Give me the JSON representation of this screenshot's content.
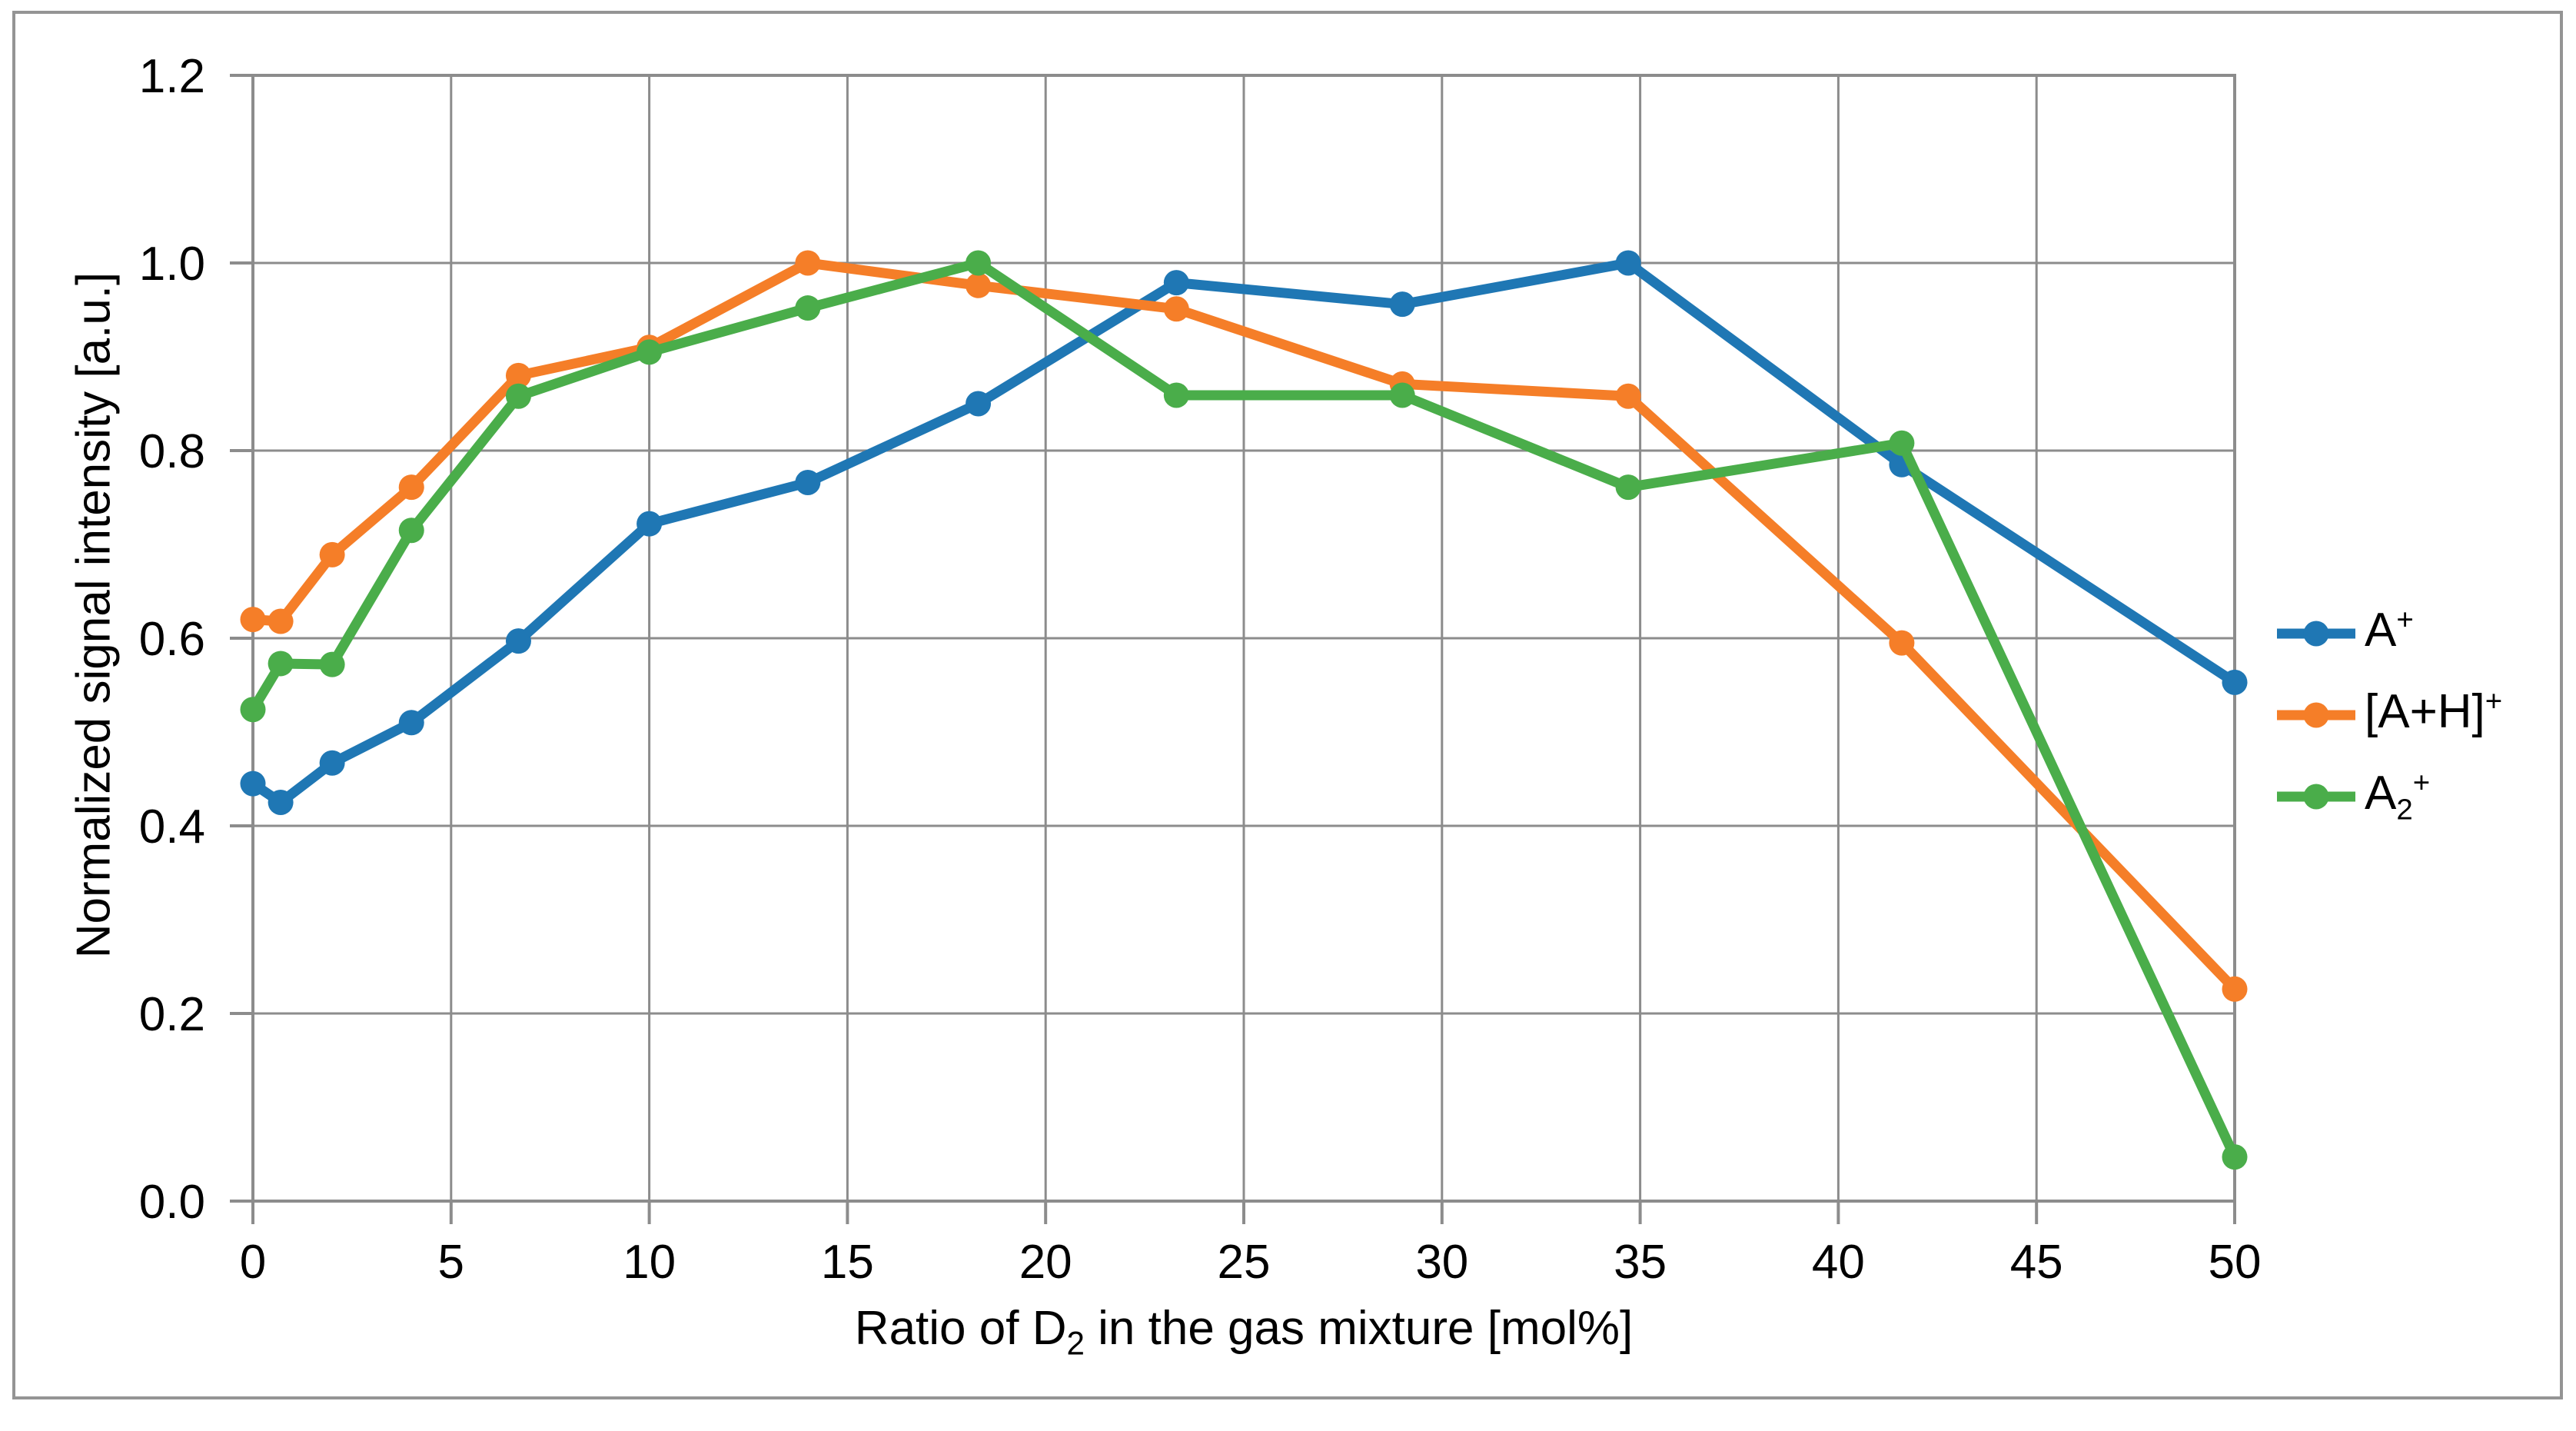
{
  "figure": {
    "background": "#ffffff",
    "border_color": "#949494"
  },
  "chart_data": {
    "type": "line",
    "title": "",
    "x": [
      0,
      0.7,
      2,
      4,
      6.7,
      10,
      14,
      18.3,
      23.3,
      29,
      34.7,
      41.6,
      50
    ],
    "series": [
      {
        "name": "A+",
        "color": "#1f77b4",
        "values": [
          0.445,
          0.425,
          0.467,
          0.51,
          0.597,
          0.722,
          0.766,
          0.85,
          0.979,
          0.956,
          1.0,
          0.785,
          0.553
        ]
      },
      {
        "name": "[A+H]+",
        "color": "#f57e28",
        "values": [
          0.62,
          0.618,
          0.689,
          0.761,
          0.88,
          0.91,
          1.0,
          0.976,
          0.951,
          0.871,
          0.858,
          0.595,
          0.226
        ]
      },
      {
        "name": "A2+",
        "color": "#4aad4a",
        "values": [
          0.524,
          0.573,
          0.572,
          0.715,
          0.858,
          0.905,
          0.952,
          1.0,
          0.859,
          0.859,
          0.761,
          0.808,
          0.047
        ]
      }
    ],
    "xlabel": "Ratio of D2 in the gas mixture [mol%]",
    "ylabel": "Normalized signal intensity [a.u.]",
    "xlim": [
      0,
      50
    ],
    "ylim": [
      0,
      1.2
    ],
    "xticks": [
      0,
      5,
      10,
      15,
      20,
      25,
      30,
      35,
      40,
      45,
      50
    ],
    "yticks": [
      0,
      0.2,
      0.4,
      0.6,
      0.8,
      1.0,
      1.2
    ],
    "ytick_labels": [
      "0.0",
      "0.2",
      "0.4",
      "0.6",
      "0.8",
      "1.0",
      "1.2"
    ],
    "grid": true,
    "grid_color": "#8c8c8c",
    "axis_color": "#8c8c8c",
    "legend_position": "right",
    "marker": "circle"
  },
  "x_axis_title": {
    "pre": "Ratio of D",
    "sub": "2",
    "post": " in the gas mixture [mol%]"
  },
  "y_axis_title": "Normalized signal intensity [a.u.]",
  "legend": {
    "items": [
      {
        "main": "A",
        "sub": "",
        "sup": "+"
      },
      {
        "main": "[A+H]",
        "sub": "",
        "sup": "+"
      },
      {
        "main": "A",
        "sub": "2",
        "sup": "+"
      }
    ]
  }
}
